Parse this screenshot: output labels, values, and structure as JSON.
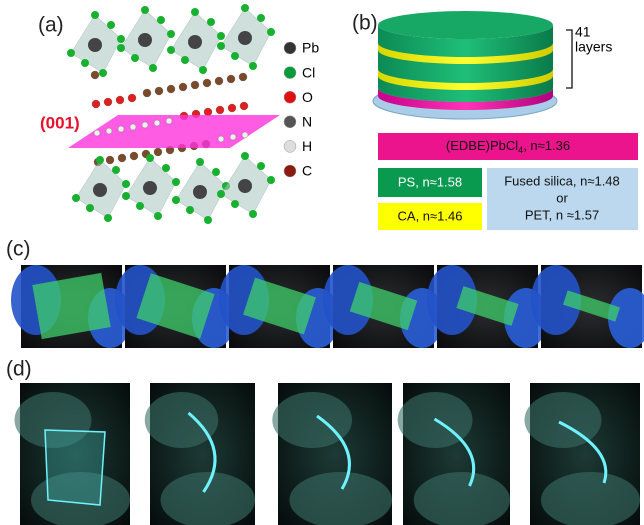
{
  "panel_a": {
    "label": "(a)",
    "plane_label": "(001)",
    "legend": [
      "Pb",
      "Cl",
      "O",
      "N",
      "H",
      "C"
    ]
  },
  "panel_b": {
    "label": "(b)",
    "layers_count": "41",
    "layers_word": "layers",
    "film": {
      "text": "(EDBE)PbCl",
      "subscript": "4",
      "suffix": ", n≈1.36"
    },
    "ps": "PS, n≈1.58",
    "ca": "CA, n≈1.46",
    "substrate": [
      "Fused silica, n≈1.48",
      "or",
      "PET, n ≈1.57"
    ]
  },
  "panel_c": {
    "label": "(c)"
  },
  "panel_d": {
    "label": "(d)"
  }
}
